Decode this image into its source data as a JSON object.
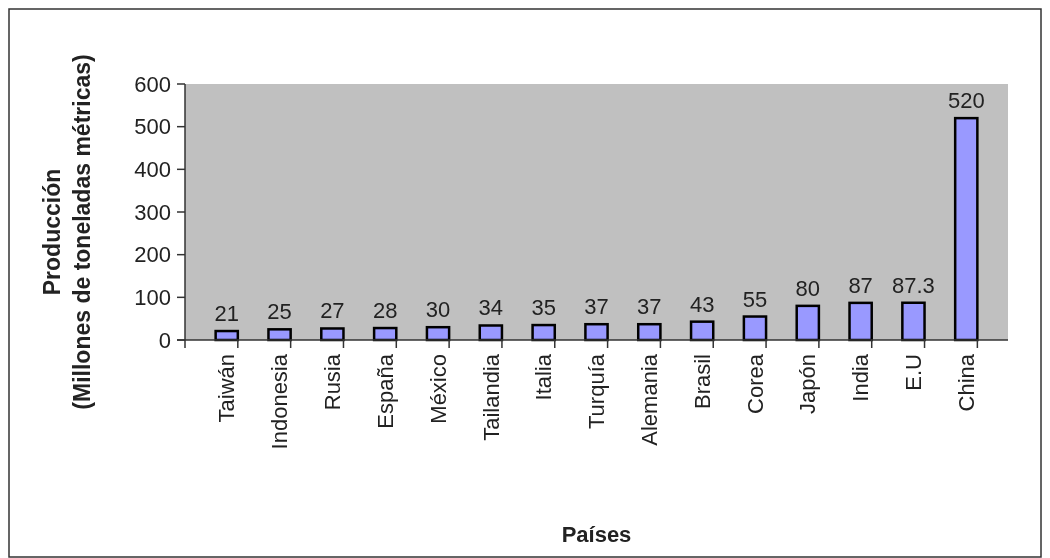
{
  "chart_data": {
    "type": "bar",
    "xlabel": "Países",
    "ylabel": "Producción\n(Millones de toneladas métricas)",
    "categories": [
      "Taiwán",
      "Indonesia",
      "Rusia",
      "España",
      "México",
      "Tailandia",
      "Italia",
      "Turquía",
      "Alemania",
      "Brasil",
      "Corea",
      "Japón",
      "India",
      "E.U",
      "China"
    ],
    "values": [
      21,
      25,
      27,
      28,
      30,
      34,
      35,
      37,
      37,
      43,
      55,
      80,
      87,
      87.3,
      520
    ],
    "color": "#9999ff",
    "ylim": [
      0,
      600
    ],
    "yticks": [
      0,
      100,
      200,
      300,
      400,
      500,
      600
    ],
    "data_labels": true,
    "grid": false
  }
}
